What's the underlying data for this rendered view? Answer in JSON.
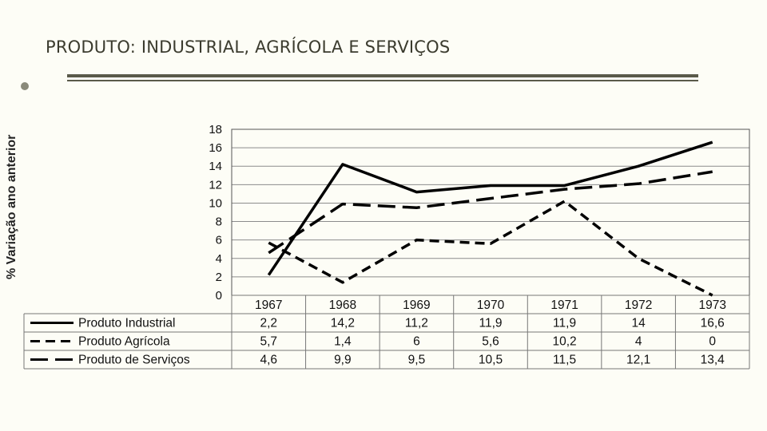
{
  "slide": {
    "title": "PRODUTO: INDUSTRIAL, AGRÍCOLA E  SERVIÇOS"
  },
  "chart_data": {
    "type": "line",
    "title": "",
    "xlabel": "",
    "ylabel": "% Variação ano anterior",
    "ylim": [
      0,
      18
    ],
    "yticks": [
      "18",
      "16",
      "14",
      "12",
      "10",
      "8",
      "6",
      "4",
      "2",
      "0"
    ],
    "categories": [
      "1967",
      "1968",
      "1969",
      "1970",
      "1971",
      "1972",
      "1973"
    ],
    "series": [
      {
        "name": "Produto Industrial",
        "style": "solid",
        "color": "#000000",
        "values": [
          2.2,
          14.2,
          11.2,
          11.9,
          11.9,
          14,
          16.6
        ],
        "labels": [
          "2,2",
          "14,2",
          "11,2",
          "11,9",
          "11,9",
          "14",
          "16,6"
        ]
      },
      {
        "name": "Produto Agrícola",
        "style": "short-dash",
        "color": "#000000",
        "values": [
          5.7,
          1.4,
          6,
          5.6,
          10.2,
          4,
          0
        ],
        "labels": [
          "5,7",
          "1,4",
          "6",
          "5,6",
          "10,2",
          "4",
          "0"
        ]
      },
      {
        "name": "Produto de Serviços",
        "style": "long-dash",
        "color": "#000000",
        "values": [
          4.6,
          9.9,
          9.5,
          10.5,
          11.5,
          12.1,
          13.4
        ],
        "labels": [
          "4,6",
          "9,9",
          "9,5",
          "10,5",
          "11,5",
          "12,1",
          "13,4"
        ]
      }
    ],
    "legend": "data-table-below",
    "grid": true
  }
}
